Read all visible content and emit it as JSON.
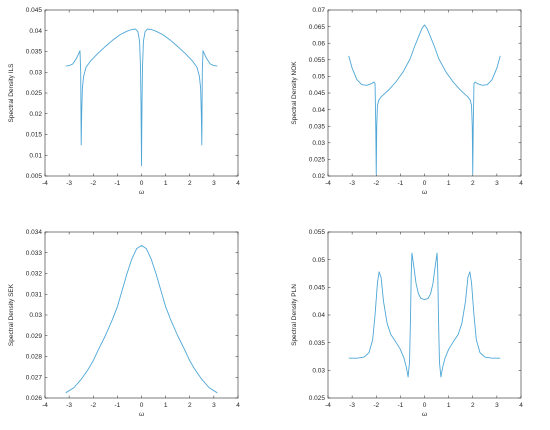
{
  "colors": {
    "line": "#4DA6D6",
    "axis": "#262626",
    "background": "#ffffff"
  },
  "chart_data": [
    {
      "type": "line",
      "xlabel": "ω",
      "ylabel": "Spectral Density ILS",
      "xlim": [
        -4,
        4
      ],
      "ylim": [
        0.005,
        0.045
      ],
      "xticks": [
        -4,
        -3,
        -2,
        -1,
        0,
        1,
        2,
        3,
        4
      ],
      "yticks": [
        0.005,
        0.01,
        0.015,
        0.02,
        0.025,
        0.03,
        0.035,
        0.04,
        0.045
      ],
      "yticklabels": [
        "0.005",
        "0.01",
        "0.015",
        "0.02",
        "0.025",
        "0.03",
        "0.035",
        "0.04",
        "0.045"
      ],
      "grid": false,
      "series": [
        {
          "x": [
            -3.14,
            -3.0,
            -2.85,
            -2.7,
            -2.6,
            -2.55,
            -2.52,
            -2.5,
            -2.48,
            -2.45,
            -2.4,
            -2.3,
            -2.1,
            -1.8,
            -1.5,
            -1.2,
            -0.9,
            -0.6,
            -0.4,
            -0.25,
            -0.15,
            -0.08,
            -0.04,
            -0.02,
            0.0,
            0.02,
            0.04,
            0.08,
            0.15,
            0.25,
            0.4,
            0.6,
            0.9,
            1.2,
            1.5,
            1.8,
            2.1,
            2.3,
            2.4,
            2.45,
            2.48,
            2.5,
            2.52,
            2.55,
            2.6,
            2.7,
            2.85,
            3.0,
            3.14
          ],
          "y": [
            0.0315,
            0.0316,
            0.032,
            0.0333,
            0.0345,
            0.0352,
            0.03,
            0.0125,
            0.02,
            0.0262,
            0.029,
            0.0312,
            0.0328,
            0.0346,
            0.0362,
            0.0377,
            0.039,
            0.0399,
            0.0403,
            0.0404,
            0.0398,
            0.0375,
            0.031,
            0.022,
            0.0075,
            0.022,
            0.031,
            0.0375,
            0.0398,
            0.0404,
            0.0403,
            0.0399,
            0.039,
            0.0377,
            0.0362,
            0.0346,
            0.0328,
            0.0312,
            0.029,
            0.0262,
            0.02,
            0.0125,
            0.03,
            0.0352,
            0.0345,
            0.0333,
            0.032,
            0.0316,
            0.0315
          ]
        }
      ]
    },
    {
      "type": "line",
      "xlabel": "ω",
      "ylabel": "Spectral Density NOK",
      "xlim": [
        -4,
        4
      ],
      "ylim": [
        0.02,
        0.07
      ],
      "xticks": [
        -4,
        -3,
        -2,
        -1,
        0,
        1,
        2,
        3,
        4
      ],
      "yticks": [
        0.02,
        0.025,
        0.03,
        0.035,
        0.04,
        0.045,
        0.05,
        0.055,
        0.06,
        0.065,
        0.07
      ],
      "yticklabels": [
        "0.02",
        "0.025",
        "0.03",
        "0.035",
        "0.04",
        "0.045",
        "0.05",
        "0.055",
        "0.06",
        "0.065",
        "0.07"
      ],
      "grid": false,
      "series": [
        {
          "x": [
            -3.14,
            -3.0,
            -2.8,
            -2.6,
            -2.4,
            -2.2,
            -2.1,
            -2.05,
            -2.02,
            -2.0,
            -1.98,
            -1.95,
            -1.9,
            -1.8,
            -1.5,
            -1.2,
            -0.9,
            -0.6,
            -0.4,
            -0.2,
            -0.1,
            0.0,
            0.1,
            0.2,
            0.4,
            0.6,
            0.9,
            1.2,
            1.5,
            1.8,
            1.9,
            1.95,
            1.98,
            2.0,
            2.02,
            2.05,
            2.1,
            2.2,
            2.4,
            2.6,
            2.8,
            3.0,
            3.14
          ],
          "y": [
            0.0562,
            0.0525,
            0.049,
            0.0475,
            0.0473,
            0.0478,
            0.0483,
            0.0478,
            0.035,
            0.0205,
            0.035,
            0.0412,
            0.0428,
            0.0438,
            0.0458,
            0.0482,
            0.0512,
            0.0552,
            0.0592,
            0.0628,
            0.0645,
            0.0655,
            0.0645,
            0.0628,
            0.0592,
            0.0552,
            0.0512,
            0.0482,
            0.0458,
            0.0438,
            0.0428,
            0.0412,
            0.035,
            0.0205,
            0.035,
            0.0478,
            0.0483,
            0.0478,
            0.0473,
            0.0475,
            0.049,
            0.0525,
            0.0562
          ]
        }
      ]
    },
    {
      "type": "line",
      "xlabel": "ω",
      "ylabel": "Spectral Density SEK",
      "xlim": [
        -4,
        4
      ],
      "ylim": [
        0.026,
        0.034
      ],
      "xticks": [
        -4,
        -3,
        -2,
        -1,
        0,
        1,
        2,
        3,
        4
      ],
      "yticks": [
        0.026,
        0.027,
        0.028,
        0.029,
        0.03,
        0.031,
        0.032,
        0.033,
        0.034
      ],
      "yticklabels": [
        "0.026",
        "0.027",
        "0.028",
        "0.029",
        "0.03",
        "0.031",
        "0.032",
        "0.033",
        "0.034"
      ],
      "grid": false,
      "series": [
        {
          "x": [
            -3.14,
            -2.8,
            -2.5,
            -2.2,
            -2.0,
            -1.8,
            -1.5,
            -1.2,
            -1.0,
            -0.8,
            -0.6,
            -0.4,
            -0.2,
            0.0,
            0.2,
            0.4,
            0.6,
            0.8,
            1.0,
            1.2,
            1.5,
            1.8,
            2.0,
            2.2,
            2.5,
            2.8,
            3.14
          ],
          "y": [
            0.02625,
            0.0265,
            0.0269,
            0.0274,
            0.0278,
            0.0283,
            0.029,
            0.0298,
            0.0304,
            0.0312,
            0.032,
            0.0327,
            0.0332,
            0.03335,
            0.0332,
            0.0327,
            0.032,
            0.0312,
            0.0304,
            0.0298,
            0.029,
            0.0283,
            0.0278,
            0.0274,
            0.0269,
            0.0265,
            0.02625
          ]
        }
      ]
    },
    {
      "type": "line",
      "xlabel": "ω",
      "ylabel": "Spectral Density PLN",
      "xlim": [
        -4,
        4
      ],
      "ylim": [
        0.025,
        0.055
      ],
      "xticks": [
        -4,
        -3,
        -2,
        -1,
        0,
        1,
        2,
        3,
        4
      ],
      "yticks": [
        0.025,
        0.03,
        0.035,
        0.04,
        0.045,
        0.05,
        0.055
      ],
      "yticklabels": [
        "0.025",
        "0.03",
        "0.035",
        "0.04",
        "0.045",
        "0.05",
        "0.055"
      ],
      "grid": false,
      "series": [
        {
          "x": [
            -3.14,
            -2.8,
            -2.5,
            -2.3,
            -2.15,
            -2.05,
            -1.95,
            -1.88,
            -1.8,
            -1.7,
            -1.55,
            -1.4,
            -1.2,
            -1.0,
            -0.85,
            -0.75,
            -0.68,
            -0.62,
            -0.58,
            -0.55,
            -0.52,
            -0.45,
            -0.35,
            -0.25,
            -0.15,
            0.0,
            0.15,
            0.25,
            0.35,
            0.45,
            0.52,
            0.55,
            0.58,
            0.62,
            0.68,
            0.75,
            0.85,
            1.0,
            1.2,
            1.4,
            1.55,
            1.7,
            1.8,
            1.88,
            1.95,
            2.05,
            2.15,
            2.3,
            2.5,
            2.8,
            3.14
          ],
          "y": [
            0.0322,
            0.0322,
            0.0324,
            0.0332,
            0.0355,
            0.04,
            0.0458,
            0.0478,
            0.0468,
            0.0425,
            0.0385,
            0.0365,
            0.0352,
            0.0338,
            0.0322,
            0.0305,
            0.0288,
            0.0315,
            0.0395,
            0.0475,
            0.0512,
            0.049,
            0.0457,
            0.0438,
            0.043,
            0.0428,
            0.043,
            0.0438,
            0.0457,
            0.049,
            0.0512,
            0.0475,
            0.0395,
            0.0315,
            0.0288,
            0.0305,
            0.0322,
            0.0338,
            0.0352,
            0.0365,
            0.0385,
            0.0425,
            0.0468,
            0.0478,
            0.0458,
            0.04,
            0.0355,
            0.0332,
            0.0324,
            0.0322,
            0.0322
          ]
        }
      ]
    }
  ]
}
